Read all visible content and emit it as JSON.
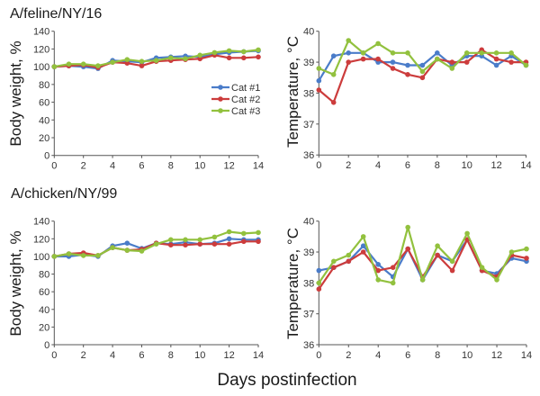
{
  "figure": {
    "shared_xlabel": "Days postinfection",
    "colors": {
      "cat1": "#4A7CC9",
      "cat2": "#CC3C3C",
      "cat3": "#92C13E"
    },
    "legend": [
      "Cat #1",
      "Cat #2",
      "Cat #3"
    ],
    "row_titles": [
      "A/feline/NY/16",
      "A/chicken/NY/99"
    ]
  },
  "chart_data": [
    {
      "type": "line",
      "title": "A/feline/NY/16",
      "xlabel": "Days postinfection",
      "ylabel": "Body weight, %",
      "x": [
        0,
        1,
        2,
        3,
        4,
        5,
        6,
        7,
        8,
        9,
        10,
        11,
        12,
        13,
        14
      ],
      "xlim": [
        0,
        14
      ],
      "xticks": [
        0,
        2,
        4,
        6,
        8,
        10,
        12,
        14
      ],
      "ylim": [
        0,
        140
      ],
      "yticks": [
        0,
        20,
        40,
        60,
        80,
        100,
        120,
        140
      ],
      "grid": false,
      "legend": "right-middle",
      "series": [
        {
          "name": "Cat #1",
          "color": "#4A7CC9",
          "values": [
            100,
            101,
            100,
            98,
            107,
            106,
            105,
            110,
            111,
            112,
            111,
            114,
            116,
            117,
            118
          ]
        },
        {
          "name": "Cat #2",
          "color": "#CC3C3C",
          "values": [
            100,
            101,
            102,
            99,
            105,
            104,
            101,
            106,
            107,
            108,
            109,
            113,
            110,
            110,
            111
          ]
        },
        {
          "name": "Cat #3",
          "color": "#92C13E",
          "values": [
            100,
            103,
            103,
            101,
            105,
            108,
            106,
            107,
            110,
            109,
            113,
            116,
            118,
            117,
            119
          ]
        }
      ]
    },
    {
      "type": "line",
      "title": "A/feline/NY/16",
      "xlabel": "Days postinfection",
      "ylabel": "Temperature, °C",
      "x": [
        0,
        1,
        2,
        3,
        4,
        5,
        6,
        7,
        8,
        9,
        10,
        11,
        12,
        13,
        14
      ],
      "xlim": [
        0,
        14
      ],
      "xticks": [
        0,
        2,
        4,
        6,
        8,
        10,
        12,
        14
      ],
      "ylim": [
        36,
        40
      ],
      "yticks": [
        36,
        37,
        38,
        39,
        40
      ],
      "grid": false,
      "series": [
        {
          "name": "Cat #1",
          "color": "#4A7CC9",
          "values": [
            38.4,
            39.2,
            39.3,
            39.3,
            39.0,
            39.0,
            38.9,
            38.9,
            39.3,
            38.9,
            39.2,
            39.2,
            38.9,
            39.2,
            38.9
          ]
        },
        {
          "name": "Cat #2",
          "color": "#CC3C3C",
          "values": [
            38.1,
            37.7,
            39.0,
            39.1,
            39.1,
            38.8,
            38.6,
            38.5,
            39.1,
            39.0,
            39.0,
            39.4,
            39.1,
            39.0,
            39.0
          ]
        },
        {
          "name": "Cat #3",
          "color": "#92C13E",
          "values": [
            38.8,
            38.6,
            39.7,
            39.3,
            39.6,
            39.3,
            39.3,
            38.7,
            39.1,
            38.8,
            39.3,
            39.3,
            39.3,
            39.3,
            38.9
          ]
        }
      ]
    },
    {
      "type": "line",
      "title": "A/chicken/NY/99",
      "xlabel": "Days postinfection",
      "ylabel": "Body weight, %",
      "x": [
        0,
        1,
        2,
        3,
        4,
        5,
        6,
        7,
        8,
        9,
        10,
        11,
        12,
        13,
        14
      ],
      "xlim": [
        0,
        14
      ],
      "xticks": [
        0,
        2,
        4,
        6,
        8,
        10,
        12,
        14
      ],
      "ylim": [
        0,
        140
      ],
      "yticks": [
        0,
        20,
        40,
        60,
        80,
        100,
        120,
        140
      ],
      "grid": false,
      "series": [
        {
          "name": "Cat #1",
          "color": "#4A7CC9",
          "values": [
            100,
            100,
            102,
            100,
            112,
            115,
            109,
            115,
            114,
            116,
            114,
            115,
            120,
            119,
            119
          ]
        },
        {
          "name": "Cat #2",
          "color": "#CC3C3C",
          "values": [
            100,
            103,
            104,
            101,
            110,
            107,
            108,
            115,
            113,
            113,
            114,
            114,
            114,
            117,
            117
          ]
        },
        {
          "name": "Cat #3",
          "color": "#92C13E",
          "values": [
            100,
            103,
            101,
            101,
            110,
            107,
            106,
            114,
            119,
            119,
            119,
            122,
            128,
            126,
            127
          ]
        }
      ]
    },
    {
      "type": "line",
      "title": "A/chicken/NY/99",
      "xlabel": "Days postinfection",
      "ylabel": "Temperature, °C",
      "x": [
        0,
        1,
        2,
        3,
        4,
        5,
        6,
        7,
        8,
        9,
        10,
        11,
        12,
        13,
        14
      ],
      "xlim": [
        0,
        14
      ],
      "xticks": [
        0,
        2,
        4,
        6,
        8,
        10,
        12,
        14
      ],
      "ylim": [
        36,
        40
      ],
      "yticks": [
        36,
        37,
        38,
        39,
        40
      ],
      "grid": false,
      "series": [
        {
          "name": "Cat #1",
          "color": "#4A7CC9",
          "values": [
            38.4,
            38.5,
            38.7,
            39.2,
            38.6,
            38.2,
            39.1,
            38.1,
            38.9,
            38.7,
            39.4,
            38.4,
            38.3,
            38.8,
            38.7
          ]
        },
        {
          "name": "Cat #2",
          "color": "#CC3C3C",
          "values": [
            37.8,
            38.5,
            38.7,
            39.0,
            38.4,
            38.5,
            39.1,
            38.2,
            38.9,
            38.4,
            39.4,
            38.4,
            38.2,
            38.9,
            38.8
          ]
        },
        {
          "name": "Cat #3",
          "color": "#92C13E",
          "values": [
            38.0,
            38.7,
            38.9,
            39.5,
            38.1,
            38.0,
            39.8,
            38.1,
            39.2,
            38.7,
            39.6,
            38.5,
            38.1,
            39.0,
            39.1
          ]
        }
      ]
    }
  ]
}
